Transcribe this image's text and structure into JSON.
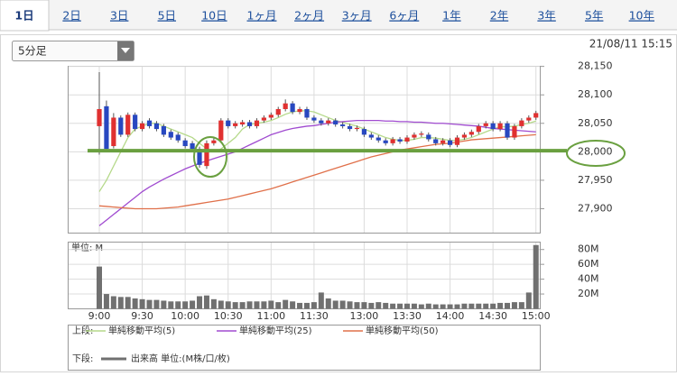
{
  "tabs": [
    "1日",
    "2日",
    "3日",
    "5日",
    "10日",
    "1ヶ月",
    "2ヶ月",
    "3ヶ月",
    "6ヶ月",
    "1年",
    "2年",
    "3年",
    "5年",
    "10年"
  ],
  "active_tab": 0,
  "interval_select": "5分足",
  "timestamp": "21/08/11 15:15",
  "legend": {
    "upper_label": "上段:",
    "lower_label": "下段:"
  },
  "chart_data": [
    {
      "type": "candlestick",
      "up_color": "#e03030",
      "down_color": "#2848c0",
      "open": [
        28045,
        28080,
        28010,
        28060,
        28030,
        28065,
        28040,
        28055,
        28050,
        28045,
        28035,
        28030,
        28020,
        28015,
        28005,
        27975,
        28015,
        28020,
        28055,
        28045,
        28048,
        28052,
        28045,
        28055,
        28060,
        28065,
        28075,
        28085,
        28070,
        28075,
        28060,
        28055,
        28050,
        28055,
        28048,
        28045,
        28040,
        28040,
        28030,
        28025,
        28020,
        28015,
        28022,
        28018,
        28025,
        28030,
        28030,
        28022,
        28015,
        28020,
        28012,
        28025,
        28030,
        28035,
        28045,
        28050,
        28040,
        28050,
        28025,
        28045,
        28055,
        28060
      ],
      "high": [
        28140,
        28090,
        28068,
        28064,
        28069,
        28069,
        28054,
        28059,
        28054,
        28049,
        28039,
        28034,
        28024,
        28019,
        28009,
        28020,
        28024,
        28059,
        28059,
        28054,
        28056,
        28056,
        28059,
        28064,
        28069,
        28079,
        28092,
        28089,
        28079,
        28079,
        28064,
        28059,
        28059,
        28059,
        28052,
        28049,
        28046,
        28044,
        28034,
        28029,
        28024,
        28026,
        28026,
        28029,
        28034,
        28036,
        28034,
        28026,
        28024,
        28024,
        28029,
        28034,
        28039,
        28049,
        28054,
        28054,
        28054,
        28054,
        28049,
        28059,
        28064,
        28072
      ],
      "low": [
        27995,
        28001,
        28006,
        28026,
        28026,
        28036,
        28036,
        28041,
        28036,
        28026,
        28021,
        28016,
        28006,
        28001,
        27972,
        27970,
        28011,
        28016,
        28041,
        28041,
        28044,
        28041,
        28041,
        28051,
        28056,
        28061,
        28071,
        28066,
        28066,
        28056,
        28051,
        28046,
        28046,
        28044,
        28041,
        28036,
        28036,
        28026,
        28021,
        28016,
        28011,
        28011,
        28014,
        28014,
        28021,
        28026,
        28018,
        28011,
        28011,
        28008,
        28008,
        28021,
        28026,
        28031,
        28041,
        28036,
        28036,
        28021,
        28021,
        28041,
        28051,
        28056
      ],
      "close": [
        28075,
        28005,
        28060,
        28030,
        28065,
        28040,
        28050,
        28045,
        28040,
        28030,
        28025,
        28020,
        28010,
        28005,
        27977,
        28015,
        28020,
        28055,
        28045,
        28050,
        28052,
        28045,
        28055,
        28060,
        28065,
        28075,
        28085,
        28070,
        28075,
        28060,
        28055,
        28050,
        28055,
        28048,
        28045,
        28040,
        28042,
        28030,
        28025,
        28020,
        28015,
        28022,
        28018,
        28025,
        28030,
        28032,
        28022,
        28015,
        28020,
        28012,
        28025,
        28030,
        28035,
        28045,
        28050,
        28040,
        28050,
        28025,
        28045,
        28055,
        28060,
        28068
      ],
      "series": [
        {
          "name": "単純移動平均(5)",
          "color": "#b5d98a",
          "values": [
            27930,
            27950,
            27975,
            28000,
            28025,
            28040,
            28045,
            28050,
            28050,
            28045,
            28040,
            28035,
            28030,
            28025,
            28015,
            28005,
            28000,
            28005,
            28015,
            28025,
            28040,
            28048,
            28050,
            28052,
            28055,
            28060,
            28066,
            28070,
            28072,
            28072,
            28070,
            28065,
            28060,
            28055,
            28052,
            28048,
            28045,
            28040,
            28035,
            28030,
            28025,
            28022,
            28020,
            28020,
            28022,
            28025,
            28025,
            28024,
            28022,
            28020,
            28020,
            28022,
            28025,
            28030,
            28035,
            28040,
            28044,
            28044,
            28045,
            28048,
            28050,
            28054
          ]
        },
        {
          "name": "単純移動平均(25)",
          "color": "#a04bd0",
          "values": [
            27870,
            27880,
            27890,
            27900,
            27910,
            27920,
            27930,
            27938,
            27945,
            27952,
            27958,
            27964,
            27970,
            27975,
            27980,
            27984,
            27988,
            27992,
            27996,
            28000,
            28006,
            28012,
            28018,
            28024,
            28030,
            28034,
            28038,
            28041,
            28043,
            28045,
            28046,
            28048,
            28050,
            28052,
            28053,
            28054,
            28055,
            28055,
            28055,
            28055,
            28054,
            28054,
            28053,
            28053,
            28052,
            28052,
            28051,
            28050,
            28050,
            28049,
            28048,
            28047,
            28046,
            28045,
            28043,
            28041,
            28040,
            28039,
            28038,
            28037,
            28036,
            28035
          ]
        },
        {
          "name": "単純移動平均(50)",
          "color": "#e0704a",
          "values": [
            27905,
            27904,
            27903,
            27902,
            27901,
            27900,
            27900,
            27900,
            27900,
            27901,
            27902,
            27903,
            27905,
            27907,
            27909,
            27911,
            27913,
            27915,
            27917,
            27920,
            27923,
            27926,
            27929,
            27932,
            27935,
            27939,
            27943,
            27947,
            27951,
            27955,
            27959,
            27963,
            27967,
            27971,
            27975,
            27979,
            27983,
            27987,
            27991,
            27994,
            27997,
            28000,
            28003,
            28005,
            28007,
            28009,
            28011,
            28013,
            28014,
            28015,
            28017,
            28019,
            28021,
            28022,
            28023,
            28024,
            28025,
            28026,
            28027,
            28028,
            28029,
            28030
          ]
        }
      ],
      "ylim": [
        27858,
        28151
      ],
      "yticks": [
        {
          "value": 28150,
          "label": "28,150"
        },
        {
          "value": 28100,
          "label": "28,100"
        },
        {
          "value": 28050,
          "label": "28,050"
        },
        {
          "value": 28000,
          "label": "28,000"
        },
        {
          "value": 27950,
          "label": "27,950"
        },
        {
          "value": 27900,
          "label": "27,900"
        }
      ],
      "reference_line": 28002,
      "reference_color": "#6aa040",
      "grid": true
    },
    {
      "type": "bar",
      "unit_label": "単位: M",
      "name": "出来高 単位:(M株/口/枚)",
      "color": "#707070",
      "categories": [
        "9:00",
        null,
        null,
        null,
        null,
        null,
        "9:30",
        null,
        null,
        null,
        null,
        null,
        "10:00",
        null,
        null,
        null,
        null,
        null,
        "10:30",
        null,
        null,
        null,
        null,
        null,
        "11:00",
        null,
        null,
        null,
        null,
        null,
        "11:30",
        null,
        null,
        null,
        null,
        null,
        null,
        "13:00",
        null,
        null,
        null,
        null,
        null,
        "13:30",
        null,
        null,
        null,
        null,
        null,
        "14:00",
        null,
        null,
        null,
        null,
        null,
        "14:30",
        null,
        null,
        null,
        null,
        null,
        "15:00"
      ],
      "values": [
        57,
        20,
        17,
        16,
        16,
        14,
        13,
        12,
        12,
        11,
        10,
        10,
        10,
        11,
        17,
        18,
        13,
        11,
        10,
        9,
        9,
        10,
        10,
        10,
        11,
        9,
        12,
        10,
        8,
        8,
        9,
        22,
        14,
        11,
        11,
        10,
        9,
        9,
        8,
        9,
        8,
        7,
        7,
        7,
        7,
        6,
        7,
        6,
        6,
        6,
        6,
        7,
        7,
        7,
        7,
        7,
        8,
        8,
        9,
        9,
        22,
        86
      ],
      "ylim": [
        0,
        90
      ],
      "yticks": [
        {
          "value": 80,
          "label": "80M"
        },
        {
          "value": 60,
          "label": "60M"
        },
        {
          "value": 40,
          "label": "40M"
        },
        {
          "value": 20,
          "label": "20M"
        }
      ],
      "grid": true
    }
  ]
}
